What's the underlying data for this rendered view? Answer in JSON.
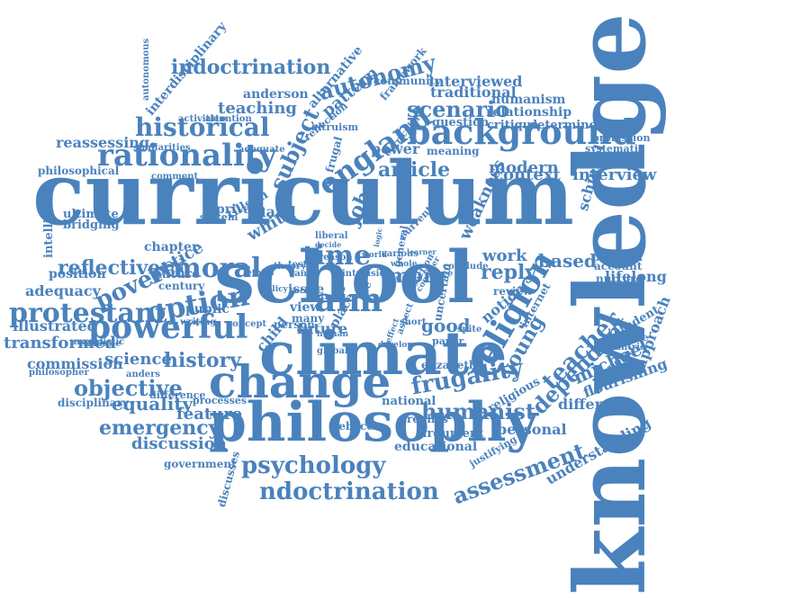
{
  "colors": {
    "word": "#4a82bd",
    "background": "#ffffff"
  },
  "words": [
    "knowledge",
    "curriculum",
    "school",
    "climate",
    "philosophy",
    "change",
    "background",
    "rationality",
    "religion",
    "historical",
    "powerful",
    "moral",
    "aim",
    "time",
    "england",
    "subject",
    "autonomy",
    "teacher",
    "dependent",
    "young",
    "option",
    "poverty",
    "reflective",
    "protestant",
    "psychology",
    "ndoctrination",
    "assessment",
    "frugality",
    "humanist",
    "objective",
    "history",
    "emergency",
    "discussion",
    "feature",
    "equality",
    "science",
    "transformed",
    "commission",
    "illustrated",
    "adequacy",
    "position",
    "chapter",
    "justice",
    "nature",
    "century",
    "public",
    "white",
    "hand",
    "tillson",
    "private",
    "system",
    "ultimate",
    "bridging",
    "intelligence",
    "philosophical",
    "reassessing",
    "similarities",
    "interdisciplinary",
    "autonomous",
    "activities",
    "attention",
    "anderson",
    "alternative",
    "indoctrination",
    "teaching",
    "pattern",
    "scenario",
    "traditional",
    "interviewed",
    "humanism",
    "relationship",
    "question",
    "critique",
    "determined",
    "profession",
    "systematic",
    "modern",
    "context",
    "interview",
    "article",
    "weakness",
    "power",
    "meaning",
    "frugal",
    "framework",
    "community",
    "john",
    "based",
    "work",
    "problem",
    "account",
    "nurture",
    "lifelong",
    "reply",
    "more",
    "good",
    "paper",
    "national",
    "elizabeth",
    "rebecca",
    "replies",
    "argument",
    "educational",
    "justifying",
    "personal",
    "understanding",
    "flourishing",
    "michael",
    "different",
    "religious",
    "proposal",
    "approach",
    "student",
    "countrie",
    "educate",
    "internet",
    "notion",
    "review",
    "view",
    "many",
    "issue",
    "future",
    "person",
    "child",
    "place",
    "life",
    "trust",
    "range",
    "tester",
    "global",
    "current",
    "general",
    "uncertain",
    "schinkel",
    "altruism",
    "reflection",
    "curricular",
    "comment",
    "adequate",
    "example",
    "unrealistic",
    "philosopher",
    "disciplinary",
    "government",
    "discusses",
    "processes",
    "difference",
    "anders",
    "writing",
    "concept",
    "liberal",
    "decide",
    "virtue",
    "logic",
    "reason",
    "face",
    "short",
    "whole",
    "various",
    "learner",
    "conclude",
    "human",
    "spite",
    "aspect",
    "intrinsic",
    "section",
    "effect",
    "consider",
    "theory",
    "ethics",
    "value",
    "develop",
    "social",
    "world",
    "policy"
  ]
}
